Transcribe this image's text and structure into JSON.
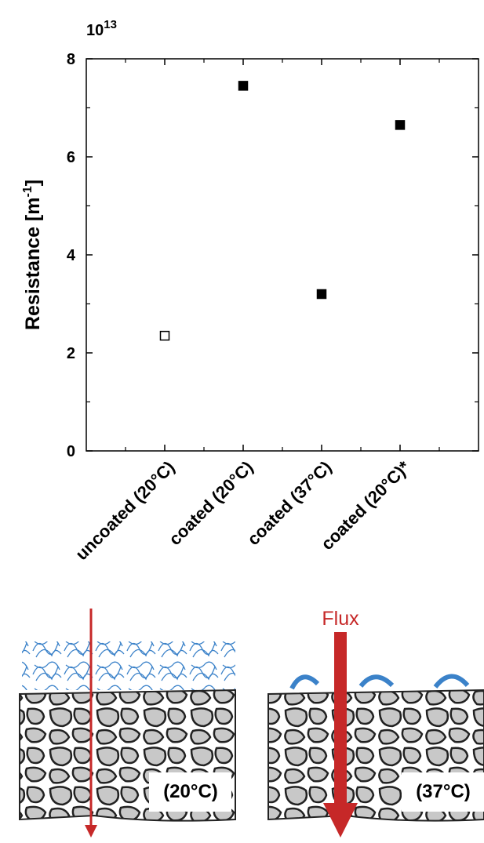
{
  "chart_data": {
    "type": "scatter",
    "multiplier": {
      "base": "10",
      "exponent": "13"
    },
    "ylabel": {
      "text": "Resistance [m",
      "superscript": "-1",
      "suffix": "]"
    },
    "categories": [
      "uncoated (20°C)",
      "coated (20°C)",
      "coated (37°C)",
      "coated (20°C)*"
    ],
    "values": [
      2.35,
      7.45,
      3.2,
      6.65
    ],
    "marker_filled": [
      false,
      true,
      true,
      true
    ],
    "color": "#000000",
    "ylim": [
      0,
      8
    ],
    "yticks": [
      0,
      2,
      4,
      6,
      8
    ],
    "minor_yticks": [
      1,
      3,
      5,
      7
    ]
  },
  "diagram": {
    "flux_label": "Flux",
    "left_label": "(20°C)",
    "right_label": "(37°C)"
  }
}
